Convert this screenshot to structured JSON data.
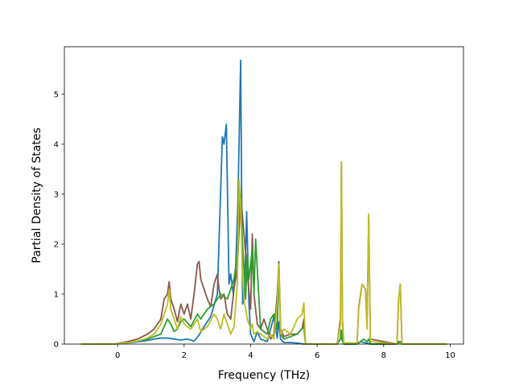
{
  "chart_data": {
    "type": "line",
    "xlabel": "Frequency (THz)",
    "ylabel": "Partial Density of States",
    "xlim": [
      -1.6,
      10.4
    ],
    "ylim": [
      0,
      5.95
    ],
    "xticks": [
      0,
      2,
      4,
      6,
      8,
      10
    ],
    "yticks": [
      0,
      1,
      2,
      3,
      4,
      5
    ],
    "grid": false,
    "legend": "none",
    "series": [
      {
        "color": "#1f77b4",
        "x": [
          -1.1,
          -0.1,
          0.0,
          0.4,
          0.8,
          1.1,
          1.3,
          1.5,
          1.7,
          1.9,
          2.1,
          2.3,
          2.45,
          2.6,
          2.8,
          3.0,
          3.15,
          3.2,
          3.27,
          3.35,
          3.4,
          3.48,
          3.55,
          3.62,
          3.7,
          3.73,
          3.76,
          3.82,
          3.88,
          3.95,
          4.0,
          4.1,
          4.2,
          4.3,
          4.5,
          4.6,
          4.7,
          4.8,
          4.85,
          4.9,
          5.0,
          5.2,
          5.4,
          5.6,
          5.65,
          6.6,
          6.7,
          6.72,
          6.75,
          6.8,
          6.9,
          7.2,
          7.3,
          7.6,
          8.4,
          8.5,
          8.55,
          9.9
        ],
        "y": [
          0,
          0,
          0.01,
          0.03,
          0.06,
          0.1,
          0.12,
          0.12,
          0.1,
          0.08,
          0.1,
          0.06,
          0.18,
          0.35,
          0.55,
          1.0,
          4.15,
          4.0,
          4.4,
          1.2,
          1.4,
          1.0,
          1.5,
          2.9,
          5.68,
          3.0,
          0.8,
          1.0,
          2.65,
          0.8,
          0.2,
          0.05,
          0.25,
          0.1,
          0.05,
          0.3,
          0.55,
          0.12,
          0.45,
          0.1,
          0.03,
          0.03,
          0.02,
          0.0,
          0,
          0,
          0.1,
          0.28,
          0.08,
          0,
          0,
          0,
          0.05,
          0,
          0,
          0.05,
          0,
          0
        ]
      },
      {
        "color": "#8c564b",
        "x": [
          -1.1,
          -0.1,
          0.0,
          0.3,
          0.6,
          0.9,
          1.1,
          1.3,
          1.4,
          1.5,
          1.55,
          1.6,
          1.7,
          1.8,
          1.9,
          2.0,
          2.1,
          2.2,
          2.3,
          2.4,
          2.45,
          2.5,
          2.6,
          2.7,
          2.8,
          2.9,
          3.0,
          3.05,
          3.1,
          3.2,
          3.3,
          3.4,
          3.5,
          3.6,
          3.7,
          3.8,
          3.9,
          4.0,
          4.05,
          4.1,
          4.2,
          4.3,
          4.4,
          4.5,
          4.6,
          4.7,
          4.8,
          4.85,
          4.9,
          5.0,
          5.2,
          5.4,
          5.55,
          5.6,
          5.65,
          6.6,
          6.7,
          6.73,
          6.76,
          6.8,
          7.2,
          7.25,
          7.35,
          7.45,
          7.5,
          7.55,
          7.6,
          8.4,
          8.45,
          8.5,
          8.55,
          9.9
        ],
        "y": [
          0,
          0,
          0.01,
          0.05,
          0.1,
          0.2,
          0.3,
          0.5,
          0.9,
          1.0,
          1.25,
          0.9,
          0.7,
          0.45,
          0.8,
          0.6,
          0.8,
          0.5,
          1.0,
          1.6,
          1.65,
          1.3,
          1.1,
          0.9,
          0.75,
          1.2,
          1.4,
          1.1,
          0.9,
          1.0,
          0.6,
          0.5,
          1.1,
          1.5,
          3.0,
          2.2,
          1.4,
          0.7,
          2.2,
          1.0,
          0.4,
          0.3,
          0.5,
          0.3,
          0.1,
          0.2,
          1.0,
          1.65,
          0.3,
          0.15,
          0.2,
          0.2,
          0.32,
          0.5,
          0,
          0,
          0.5,
          3.65,
          0.5,
          0.02,
          0.02,
          0.75,
          1.2,
          1.1,
          0.4,
          2.55,
          0.1,
          0,
          0.9,
          1.2,
          0,
          0
        ]
      },
      {
        "color": "#2ca02c",
        "x": [
          -1.1,
          -0.1,
          0.0,
          0.3,
          0.6,
          0.9,
          1.1,
          1.3,
          1.4,
          1.5,
          1.6,
          1.7,
          1.8,
          1.9,
          2.0,
          2.2,
          2.4,
          2.5,
          2.7,
          2.9,
          3.1,
          3.3,
          3.5,
          3.6,
          3.65,
          3.7,
          3.75,
          3.8,
          3.85,
          3.9,
          3.95,
          4.0,
          4.05,
          4.1,
          4.15,
          4.3,
          4.5,
          4.6,
          4.7,
          4.8,
          4.85,
          4.9,
          5.0,
          5.2,
          5.4,
          5.6,
          5.65,
          6.6,
          6.7,
          6.73,
          6.76,
          6.8,
          7.2,
          7.3,
          7.4,
          7.5,
          7.55,
          7.6,
          8.4,
          8.45,
          8.5,
          8.55,
          9.9
        ],
        "y": [
          0,
          0,
          0.01,
          0.03,
          0.06,
          0.1,
          0.15,
          0.2,
          0.35,
          0.5,
          0.4,
          0.25,
          0.3,
          0.45,
          0.5,
          0.35,
          0.6,
          0.5,
          0.7,
          0.8,
          1.0,
          0.9,
          1.3,
          1.8,
          2.5,
          3.0,
          2.1,
          1.5,
          0.9,
          1.8,
          1.3,
          1.6,
          1.9,
          1.0,
          2.1,
          0.3,
          0.2,
          0.5,
          0.6,
          0.3,
          1.55,
          0.2,
          0.1,
          0.15,
          0.2,
          0.35,
          0,
          0,
          0.1,
          0.28,
          0.08,
          0,
          0,
          0.05,
          0.1,
          0.05,
          0.1,
          0,
          0,
          0.05,
          0.05,
          0,
          0
        ]
      },
      {
        "color": "#bcbd22",
        "x": [
          -1.1,
          -0.1,
          0.0,
          0.3,
          0.6,
          0.9,
          1.1,
          1.3,
          1.4,
          1.5,
          1.55,
          1.6,
          1.7,
          1.8,
          1.9,
          2.0,
          2.2,
          2.4,
          2.5,
          2.7,
          2.9,
          3.0,
          3.1,
          3.2,
          3.3,
          3.4,
          3.5,
          3.6,
          3.65,
          3.7,
          3.75,
          3.8,
          3.9,
          4.0,
          4.05,
          4.1,
          4.2,
          4.3,
          4.5,
          4.6,
          4.7,
          4.8,
          4.85,
          4.9,
          5.0,
          5.2,
          5.4,
          5.55,
          5.6,
          5.65,
          6.6,
          6.7,
          6.73,
          6.76,
          6.8,
          7.2,
          7.25,
          7.35,
          7.45,
          7.5,
          7.55,
          7.6,
          8.4,
          8.45,
          8.5,
          8.55,
          9.9
        ],
        "y": [
          0,
          0,
          0.01,
          0.03,
          0.06,
          0.12,
          0.2,
          0.4,
          0.6,
          0.8,
          1.1,
          0.7,
          0.5,
          0.3,
          0.55,
          0.4,
          0.3,
          0.5,
          0.25,
          0.35,
          0.6,
          0.5,
          0.3,
          0.6,
          0.4,
          0.2,
          0.35,
          1.2,
          3.3,
          2.8,
          1.5,
          0.9,
          0.5,
          0.3,
          0.4,
          0.2,
          0.25,
          0.2,
          0.1,
          0.2,
          0.1,
          0.8,
          1.6,
          0.2,
          0.3,
          0.2,
          0.5,
          0.6,
          0.82,
          0,
          0,
          0.4,
          3.65,
          0.4,
          0.02,
          0.02,
          0.7,
          1.2,
          1.1,
          0.3,
          2.6,
          0.05,
          0,
          0.9,
          1.2,
          0,
          0
        ]
      }
    ]
  }
}
